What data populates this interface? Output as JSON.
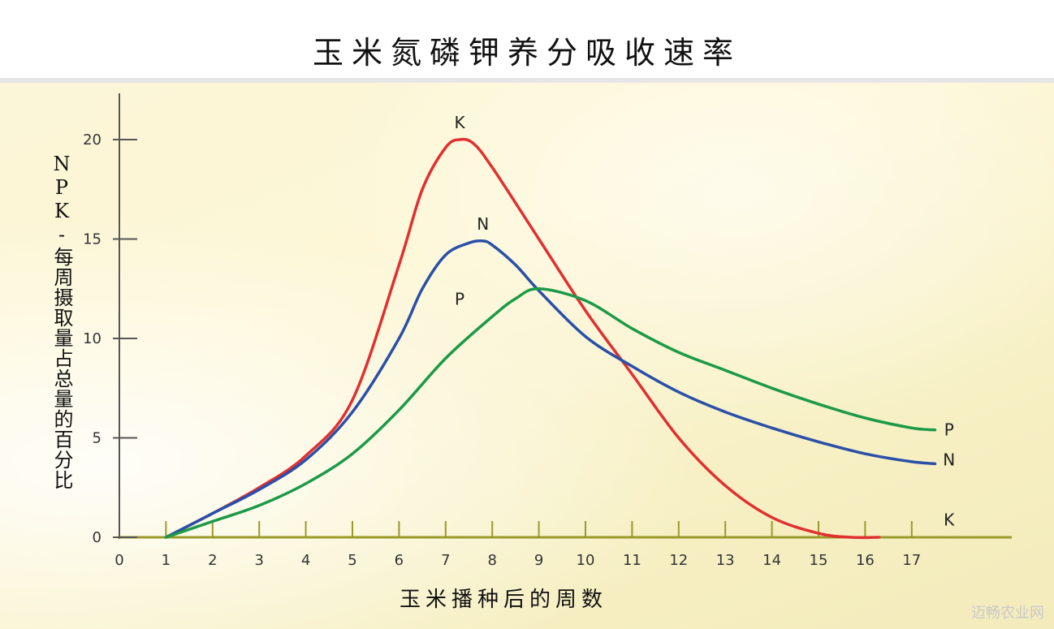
{
  "title": "玉米氮磷钾养分吸收速率",
  "watermark": "迈畅农业网",
  "chart_data": {
    "type": "line",
    "xlabel": "玉米播种后的周数",
    "ylabel": "NPK-每周摄取量占总量的百分比",
    "xlim": [
      0,
      17
    ],
    "ylim": [
      0,
      20
    ],
    "x_ticks": [
      "0",
      "1",
      "2",
      "3",
      "4",
      "5",
      "6",
      "7",
      "8",
      "9",
      "10",
      "11",
      "12",
      "13",
      "14",
      "15",
      "16",
      "17"
    ],
    "y_ticks": [
      "0",
      "5",
      "10",
      "15",
      "20"
    ],
    "grid": false,
    "series": [
      {
        "name": "K",
        "color": "#e03030",
        "x": [
          1,
          2,
          3,
          4,
          5,
          6,
          6.5,
          7,
          7.3,
          7.6,
          8,
          9,
          10,
          11,
          12,
          13,
          14,
          15,
          15.7,
          16.3
        ],
        "y": [
          0,
          1.2,
          2.5,
          4.1,
          6.9,
          13.7,
          17.5,
          19.6,
          20,
          19.8,
          18.6,
          15.0,
          11.4,
          8.2,
          5.0,
          2.6,
          1.0,
          0.2,
          0,
          0
        ]
      },
      {
        "name": "N",
        "color": "#2a4fa8",
        "x": [
          1,
          2,
          3,
          4,
          5,
          6,
          6.5,
          7,
          7.5,
          7.8,
          8,
          8.5,
          9,
          10,
          11,
          12,
          13,
          14,
          15,
          16,
          17,
          17.5
        ],
        "y": [
          0,
          1.2,
          2.4,
          3.9,
          6.3,
          10.0,
          12.5,
          14.2,
          14.8,
          14.9,
          14.7,
          13.7,
          12.4,
          10.1,
          8.6,
          7.3,
          6.3,
          5.5,
          4.8,
          4.2,
          3.8,
          3.7
        ]
      },
      {
        "name": "P",
        "color": "#1c9a48",
        "x": [
          1,
          2,
          3,
          4,
          5,
          6,
          7,
          8,
          8.5,
          9,
          10,
          11,
          12,
          13,
          14,
          15,
          16,
          17,
          17.5
        ],
        "y": [
          0,
          0.8,
          1.6,
          2.7,
          4.2,
          6.4,
          9.0,
          11.1,
          12.0,
          12.5,
          11.9,
          10.5,
          9.3,
          8.4,
          7.5,
          6.7,
          6.0,
          5.5,
          5.4
        ]
      }
    ],
    "series_labels": {
      "peak": [
        {
          "text": "K",
          "series": "K"
        },
        {
          "text": "N",
          "series": "N"
        },
        {
          "text": "P",
          "series": "P"
        }
      ],
      "end": [
        {
          "text": "P",
          "series": "P"
        },
        {
          "text": "N",
          "series": "N"
        },
        {
          "text": "K",
          "series": "K"
        }
      ]
    }
  }
}
